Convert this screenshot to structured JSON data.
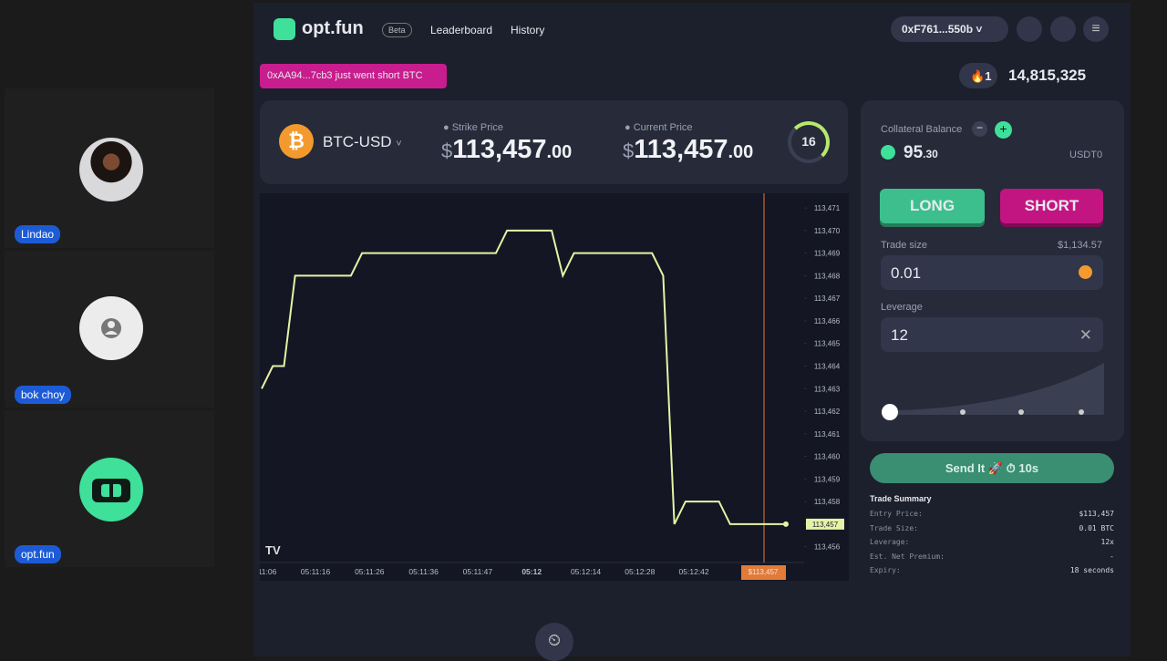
{
  "participants": [
    {
      "name": "Lindao"
    },
    {
      "name": "bok choy"
    },
    {
      "name": "opt.fun"
    }
  ],
  "header": {
    "logo": "opt.fun",
    "badge": "Beta",
    "nav": [
      "Leaderboard",
      "History"
    ],
    "wallet": "0xF761...550b"
  },
  "notification": "0xAA94...7cb3 just went short BTC",
  "stats": {
    "streak": "1",
    "points": "14,815,325"
  },
  "ticker": {
    "pair": "BTC-USD",
    "strike_label": "Strike Price",
    "strike": {
      "currency": "$",
      "whole": "113,457",
      "cents": ".00"
    },
    "current_label": "Current Price",
    "current": {
      "currency": "$",
      "whole": "113,457",
      "cents": ".00"
    },
    "timer": "16"
  },
  "price_chart": {
    "type": "line",
    "color": "#e6f3a6",
    "values": [
      113463,
      113464,
      113464,
      113468,
      113468,
      113468,
      113468,
      113468,
      113468,
      113469,
      113469,
      113469,
      113469,
      113469,
      113469,
      113469,
      113469,
      113469,
      113469,
      113469,
      113469,
      113469,
      113470,
      113470,
      113470,
      113470,
      113470,
      113468,
      113469,
      113469,
      113469,
      113469,
      113469,
      113469,
      113469,
      113469,
      113468,
      113457,
      113458,
      113458,
      113458,
      113458,
      113457,
      113457,
      113457,
      113457,
      113457,
      113457
    ],
    "ylim": [
      113455.3,
      113471.65
    ],
    "yticks": [
      {
        "value": 113471,
        "label": "113,471"
      },
      {
        "value": 113470,
        "label": "113,470"
      },
      {
        "value": 113469,
        "label": "113,469"
      },
      {
        "value": 113468,
        "label": "113,468"
      },
      {
        "value": 113467,
        "label": "113,467"
      },
      {
        "value": 113466,
        "label": "113,466"
      },
      {
        "value": 113465,
        "label": "113,465"
      },
      {
        "value": 113464,
        "label": "113,464"
      },
      {
        "value": 113463,
        "label": "113,463"
      },
      {
        "value": 113462,
        "label": "113,462"
      },
      {
        "value": 113461,
        "label": "113,461"
      },
      {
        "value": 113460,
        "label": "113,460"
      },
      {
        "value": 113459,
        "label": "113,459"
      },
      {
        "value": 113458,
        "label": "113,458"
      },
      {
        "value": 113457,
        "label": "113,457"
      },
      {
        "value": 113456,
        "label": "113,456"
      }
    ],
    "xtick_labels": [
      "11:06",
      "05:11:16",
      "05:11:26",
      "05:11:36",
      "05:11:47",
      "05:12",
      "05:12:14",
      "05:12:28",
      "05:12:42"
    ],
    "current_price_label": {
      "value": 113457,
      "label": "113,457"
    },
    "current_time_label": "$113,457"
  },
  "trade_panel": {
    "collateral_label": "Collateral Balance",
    "balance_whole": "95",
    "balance_cents": ".30",
    "currency": "USDT0",
    "long": "LONG",
    "short": "SHORT",
    "trade_size_label": "Trade size",
    "trade_size_usd": "$1,134.57",
    "trade_size": "0.01",
    "leverage_label": "Leverage",
    "leverage": "12",
    "send": "Send It",
    "send_timer": "10s"
  },
  "summary": {
    "title": "Trade Summary",
    "rows": [
      [
        "Entry Price:",
        "$113,457"
      ],
      [
        "Trade Size:",
        "0.01 BTC"
      ],
      [
        "Leverage:",
        "12x"
      ],
      [
        "Est. Net Premium:",
        "-"
      ],
      [
        "Expiry:",
        "18 seconds"
      ]
    ]
  }
}
